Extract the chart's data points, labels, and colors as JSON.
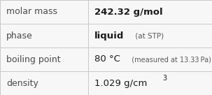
{
  "rows": [
    {
      "label": "molar mass",
      "main_text": "242.32 g/mol",
      "main_bold": true,
      "main_size": 9.5,
      "note_text": "",
      "note_size": 7.5,
      "has_superscript": false
    },
    {
      "label": "phase",
      "main_text": "liquid",
      "main_bold": true,
      "main_size": 9.5,
      "note_text": " (at STP)",
      "note_size": 7.5,
      "has_superscript": false
    },
    {
      "label": "boiling point",
      "main_text": "80 °C",
      "main_bold": false,
      "main_size": 9.5,
      "note_text": "  (measured at 13.33 Pa)",
      "note_size": 7.0,
      "has_superscript": false
    },
    {
      "label": "density",
      "main_text": "1.029 g/cm",
      "main_bold": false,
      "main_size": 9.5,
      "note_text": "3",
      "note_size": 7.0,
      "has_superscript": true
    }
  ],
  "label_fontsize": 9.0,
  "label_color": "#4a4a4a",
  "value_color": "#1a1a1a",
  "note_color": "#5a5a5a",
  "background_color": "#f7f7f7",
  "line_color": "#c8c8c8",
  "col_split": 0.415,
  "figwidth": 3.03,
  "figheight": 1.36,
  "dpi": 100
}
